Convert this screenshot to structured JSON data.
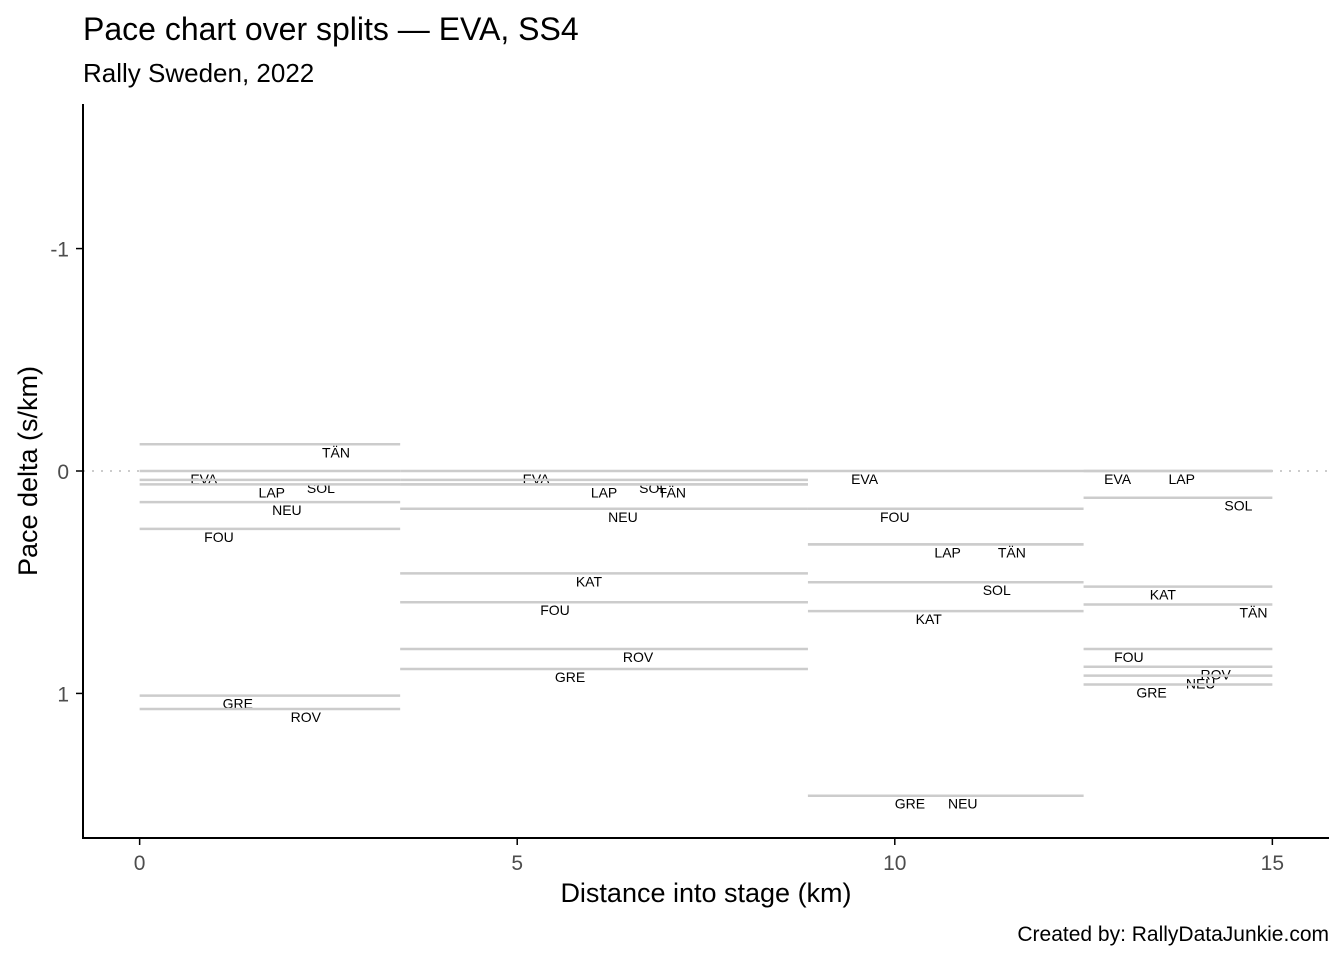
{
  "colors": {
    "segment": "#cccccc",
    "zero_line": "#cccccc",
    "axis": "#000000",
    "tick_text": "#4d4d4d"
  },
  "chart_data": {
    "type": "step-segments",
    "title": "Pace chart over splits — EVA, SS4",
    "subtitle": "Rally Sweden, 2022",
    "xlabel": "Distance into stage (km)",
    "ylabel": "Pace delta (s/km)",
    "caption": "Created by: RallyDataJunkie.com",
    "xlim": [
      -0.75,
      15.75
    ],
    "ylim": [
      1.65,
      -1.65
    ],
    "y_reversed": true,
    "x_ticks": [
      0,
      5,
      10,
      15
    ],
    "x_tick_labels": [
      "0",
      "5",
      "10",
      "15"
    ],
    "y_ticks": [
      -1,
      0,
      1
    ],
    "y_tick_labels": [
      "-1",
      "0",
      "1"
    ],
    "reference_line": 0,
    "splits": [
      {
        "start": 0.0,
        "end": 3.45,
        "segments": [
          {
            "driver": "TÄN",
            "pace": -0.12,
            "label_x": 2.6
          },
          {
            "driver": "EVA",
            "pace": 0.0,
            "label_x": 0.85
          },
          {
            "driver": "SOL",
            "pace": 0.04,
            "label_x": 2.4
          },
          {
            "driver": "LAP",
            "pace": 0.06,
            "label_x": 1.75
          },
          {
            "driver": "NEU",
            "pace": 0.14,
            "label_x": 1.95
          },
          {
            "driver": "FOU",
            "pace": 0.26,
            "label_x": 1.05
          },
          {
            "driver": "GRE",
            "pace": 1.01,
            "label_x": 1.3
          },
          {
            "driver": "ROV",
            "pace": 1.07,
            "label_x": 2.2
          }
        ]
      },
      {
        "start": 3.45,
        "end": 8.85,
        "segments": [
          {
            "driver": "EVA",
            "pace": 0.0,
            "label_x": 5.25
          },
          {
            "driver": "SOL",
            "pace": 0.04,
            "label_x": 6.8
          },
          {
            "driver": "LAP",
            "pace": 0.06,
            "label_x": 6.15
          },
          {
            "driver": "TÄN",
            "pace": 0.06,
            "label_x": 7.05
          },
          {
            "driver": "NEU",
            "pace": 0.17,
            "label_x": 6.4
          },
          {
            "driver": "KAT",
            "pace": 0.46,
            "label_x": 5.95
          },
          {
            "driver": "FOU",
            "pace": 0.59,
            "label_x": 5.5
          },
          {
            "driver": "ROV",
            "pace": 0.8,
            "label_x": 6.6
          },
          {
            "driver": "GRE",
            "pace": 0.89,
            "label_x": 5.7
          }
        ]
      },
      {
        "start": 8.85,
        "end": 12.5,
        "segments": [
          {
            "driver": "EVA",
            "pace": 0.0,
            "label_x": 9.6
          },
          {
            "driver": "FOU",
            "pace": 0.17,
            "label_x": 10.0
          },
          {
            "driver": "LAP",
            "pace": 0.33,
            "label_x": 10.7
          },
          {
            "driver": "TÄN",
            "pace": 0.33,
            "label_x": 11.55
          },
          {
            "driver": "SOL",
            "pace": 0.5,
            "label_x": 11.35
          },
          {
            "driver": "KAT",
            "pace": 0.63,
            "label_x": 10.45
          },
          {
            "driver": "GRE",
            "pace": 1.46,
            "label_x": 10.2
          },
          {
            "driver": "NEU",
            "pace": 1.46,
            "label_x": 10.9
          }
        ]
      },
      {
        "start": 12.5,
        "end": 15.0,
        "segments": [
          {
            "driver": "EVA",
            "pace": 0.0,
            "label_x": 12.95
          },
          {
            "driver": "LAP",
            "pace": 0.0,
            "label_x": 13.8
          },
          {
            "driver": "SOL",
            "pace": 0.12,
            "label_x": 14.55
          },
          {
            "driver": "KAT",
            "pace": 0.52,
            "label_x": 13.55
          },
          {
            "driver": "TÄN",
            "pace": 0.6,
            "label_x": 14.75
          },
          {
            "driver": "FOU",
            "pace": 0.8,
            "label_x": 13.1
          },
          {
            "driver": "ROV",
            "pace": 0.88,
            "label_x": 14.25
          },
          {
            "driver": "NEU",
            "pace": 0.92,
            "label_x": 14.05
          },
          {
            "driver": "GRE",
            "pace": 0.96,
            "label_x": 13.4
          }
        ]
      }
    ]
  }
}
